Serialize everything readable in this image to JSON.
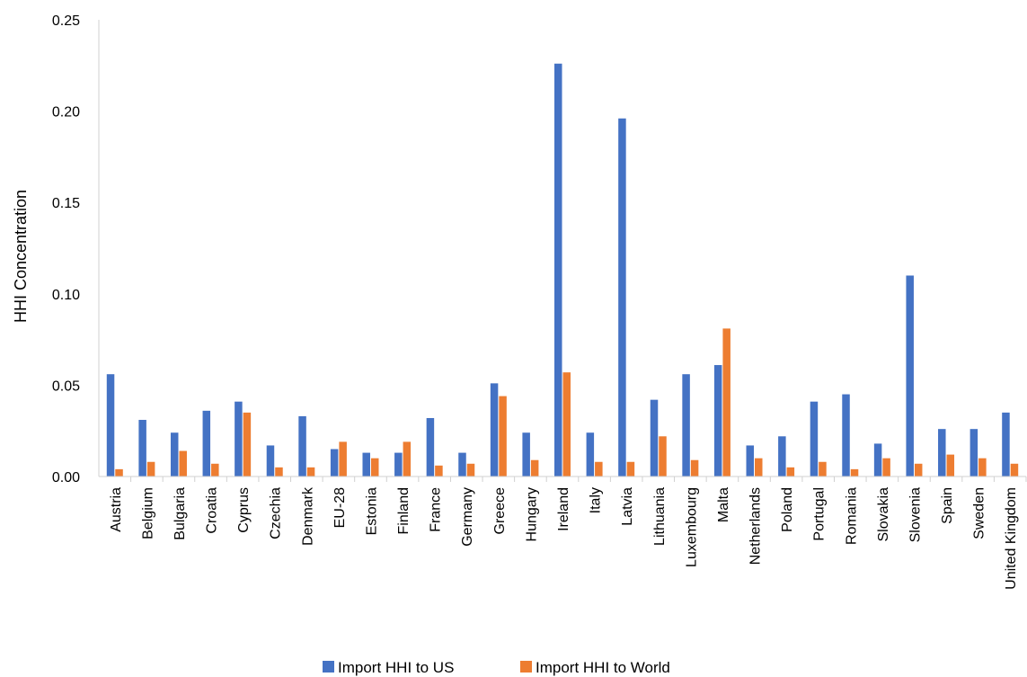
{
  "chart_data": {
    "type": "bar",
    "title": "",
    "xlabel": "",
    "ylabel": "HHI Concentration",
    "ylim": [
      0,
      0.25
    ],
    "yticks": [
      "0.00",
      "0.05",
      "0.10",
      "0.15",
      "0.20",
      "0.25"
    ],
    "grid": false,
    "legend_position": "bottom",
    "categories": [
      "Austria",
      "Belgium",
      "Bulgaria",
      "Croatia",
      "Cyprus",
      "Czechia",
      "Denmark",
      "EU-28",
      "Estonia",
      "Finland",
      "France",
      "Germany",
      "Greece",
      "Hungary",
      "Ireland",
      "Italy",
      "Latvia",
      "Lithuania",
      "Luxembourg",
      "Malta",
      "Netherlands",
      "Poland",
      "Portugal",
      "Romania",
      "Slovakia",
      "Slovenia",
      "Spain",
      "Sweden",
      "United Kingdom"
    ],
    "series": [
      {
        "name": "Import HHI to US",
        "color": "#4472C4",
        "values": [
          0.056,
          0.031,
          0.024,
          0.036,
          0.041,
          0.017,
          0.033,
          0.015,
          0.013,
          0.013,
          0.032,
          0.013,
          0.051,
          0.024,
          0.226,
          0.024,
          0.196,
          0.042,
          0.056,
          0.061,
          0.017,
          0.022,
          0.041,
          0.045,
          0.018,
          0.11,
          0.026,
          0.026,
          0.035
        ]
      },
      {
        "name": "Import HHI to World",
        "color": "#ED7D31",
        "values": [
          0.004,
          0.008,
          0.014,
          0.007,
          0.035,
          0.005,
          0.005,
          0.019,
          0.01,
          0.019,
          0.006,
          0.007,
          0.044,
          0.009,
          0.057,
          0.008,
          0.008,
          0.022,
          0.009,
          0.081,
          0.01,
          0.005,
          0.008,
          0.004,
          0.01,
          0.007,
          0.012,
          0.01,
          0.007
        ]
      }
    ]
  }
}
